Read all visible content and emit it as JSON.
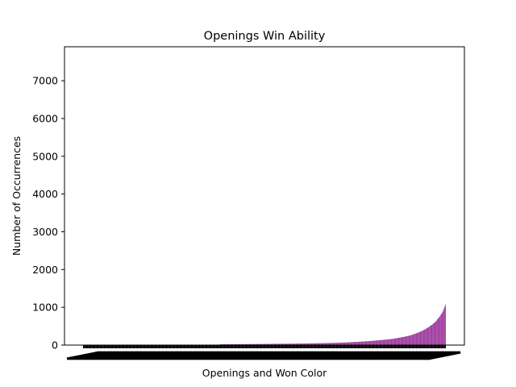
{
  "chart_data": {
    "type": "bar",
    "title": "Openings Win Ability",
    "xlabel": "Openings and Won Color",
    "ylabel": "Number of Occurrences",
    "ylim": [
      0,
      7900
    ],
    "yticks": [
      0,
      1000,
      2000,
      3000,
      4000,
      5000,
      6000,
      7000
    ],
    "grid": false,
    "bar_color": "#800080",
    "category_count": 1000,
    "values_sorted_ascending_samples": [
      {
        "rank_fraction": 0.0,
        "value": 1
      },
      {
        "rank_fraction": 0.36,
        "value": 2
      },
      {
        "rank_fraction": 0.38,
        "value": 20
      },
      {
        "rank_fraction": 0.5,
        "value": 30
      },
      {
        "rank_fraction": 0.6,
        "value": 40
      },
      {
        "rank_fraction": 0.7,
        "value": 60
      },
      {
        "rank_fraction": 0.78,
        "value": 100
      },
      {
        "rank_fraction": 0.85,
        "value": 160
      },
      {
        "rank_fraction": 0.9,
        "value": 250
      },
      {
        "rank_fraction": 0.94,
        "value": 400
      },
      {
        "rank_fraction": 0.97,
        "value": 600
      },
      {
        "rank_fraction": 0.99,
        "value": 850
      },
      {
        "rank_fraction": 1.0,
        "value": 1080
      }
    ]
  }
}
